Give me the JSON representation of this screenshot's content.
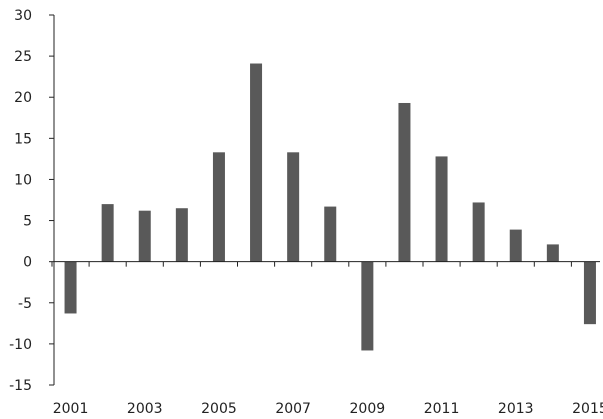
{
  "chart_data": {
    "type": "bar",
    "title": "",
    "xlabel": "",
    "ylabel": "",
    "categories": [
      "2001",
      "2002",
      "2003",
      "2004",
      "2005",
      "2006",
      "2007",
      "2008",
      "2009",
      "2010",
      "2011",
      "2012",
      "2013",
      "2014",
      "2015"
    ],
    "x_tick_labels": [
      "2001",
      "2003",
      "2005",
      "2007",
      "2009",
      "2011",
      "2013",
      "2015"
    ],
    "values": [
      -6.3,
      7.0,
      6.2,
      6.5,
      13.3,
      24.1,
      13.3,
      6.7,
      -10.8,
      19.3,
      12.8,
      7.2,
      3.9,
      2.1,
      -7.6
    ],
    "ylim": [
      -15,
      30
    ],
    "yticks": [
      30,
      25,
      20,
      15,
      10,
      5,
      0,
      -5,
      -10,
      -15
    ],
    "bar_color": "#595959",
    "grid": false,
    "legend": "none"
  }
}
